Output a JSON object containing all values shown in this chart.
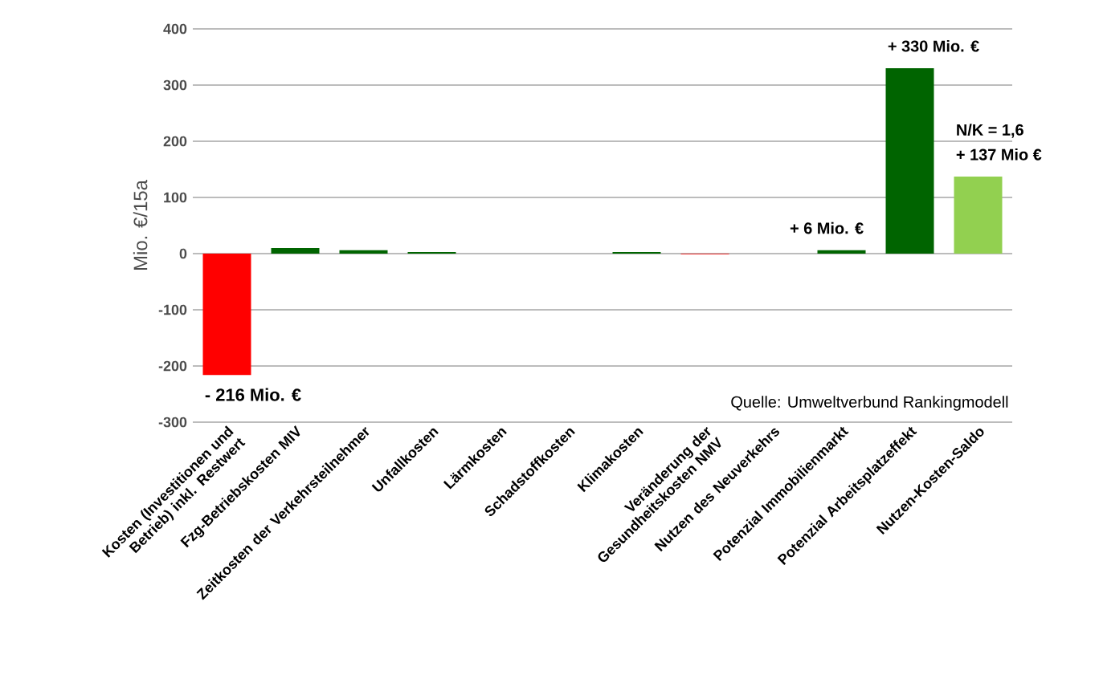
{
  "chart_data": {
    "type": "bar",
    "ylabel": "Mio. €/15a",
    "categories": [
      "Kosten (Investitionen und Betrieb) inkl. Restwert",
      "Fzg-Betriebskosten MIV",
      "Zeitkosten der Verkehrsteilnehmer",
      "Unfallkosten",
      "Lärmkosten",
      "Schadstoffkosten",
      "Klimakosten",
      "Veränderung der Gesundheitskosten NMV",
      "Nutzen des Neuverkehrs",
      "Potenzial Immobilienmarkt",
      "Potenzial Arbeitsplatzeffekt",
      "Nutzen-Kosten-Saldo"
    ],
    "values": [
      -216,
      10,
      6,
      3,
      0,
      0,
      3,
      -1,
      0,
      6,
      330,
      137
    ],
    "colors": [
      "#ff0000",
      "#006400",
      "#006400",
      "#006400",
      "#006400",
      "#006400",
      "#006400",
      "#ff0000",
      "#006400",
      "#006400",
      "#006400",
      "#92d050"
    ],
    "value_labels": [
      "- 216 Mio. €",
      null,
      null,
      null,
      null,
      null,
      null,
      null,
      null,
      "+ 6 Mio. €",
      "+ 330 Mio. €",
      "+ 137 Mio €"
    ],
    "annotations": [
      "N/K = 1,6",
      "Quelle: Umweltverbund Rankingmodell"
    ],
    "ylim": [
      -300,
      400
    ],
    "yticks": [
      -300,
      -200,
      -100,
      0,
      100,
      200,
      300,
      400
    ],
    "grid": "y"
  }
}
